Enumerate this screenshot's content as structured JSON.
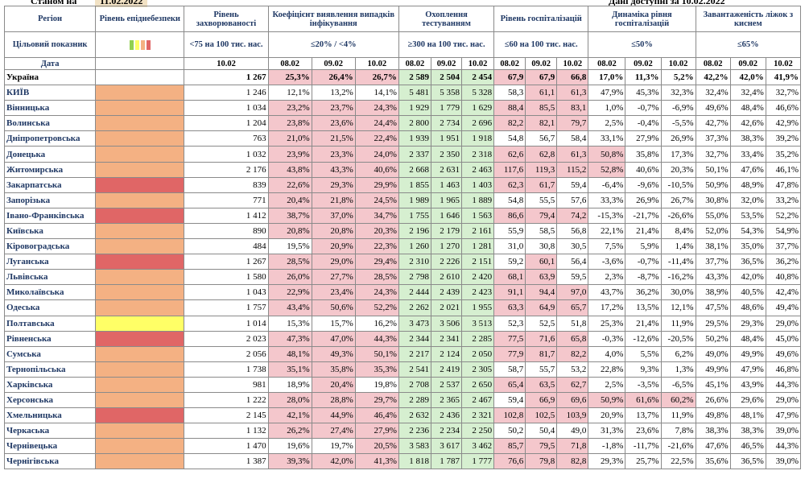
{
  "top": {
    "left": "Станом на",
    "date": "11.02.2022",
    "right": "Дані доступні за 10.02.2022"
  },
  "headers": {
    "region": "Регіон",
    "epid": "Рівень епіднебезпеки",
    "incidence": "Рівень захворюваності",
    "detection": "Коефіцієнт виявлення випадків інфікування",
    "testing": "Охоплення тестуванням",
    "hosp": "Рівень госпіталізацій",
    "dyn": "Динаміка рівня госпіталізацій",
    "beds": "Завантаженість ліжок з киснем",
    "target_label": "Цільовий показник",
    "target_incidence": "<75 на 100 тис. нас.",
    "target_detection": "≤20% / <4%",
    "target_testing": "≥300 на 100 тис. нас.",
    "target_hosp": "≤60 на 100 тис. нас.",
    "target_dyn": "≤50%",
    "target_beds": "≤65%",
    "date_label": "Дата",
    "d_inc": "10.02",
    "dates": [
      "08.02",
      "09.02",
      "10.02"
    ]
  },
  "colors": {
    "orange": "#f4b183",
    "red": "#e06666",
    "yellow": "#ffff66",
    "pink": "#f4c7cc",
    "green": "#d6efd0"
  },
  "rows": [
    {
      "name": "Україна",
      "lvl": "none",
      "inc": "1 267",
      "det": [
        "25,3%",
        "26,4%",
        "26,7%"
      ],
      "test": [
        "2 589",
        "2 504",
        "2 454"
      ],
      "hosp": [
        "67,9",
        "67,9",
        "66,8"
      ],
      "dyn": [
        "17,0%",
        "11,3%",
        "5,2%"
      ],
      "beds": [
        "42,2%",
        "42,0%",
        "41,9%"
      ]
    },
    {
      "name": "КИЇВ",
      "lvl": "orange",
      "inc": "1 246",
      "det": [
        "12,1%",
        "13,2%",
        "14,1%"
      ],
      "test": [
        "5 481",
        "5 358",
        "5 328"
      ],
      "hosp": [
        "58,3",
        "61,1",
        "61,3"
      ],
      "dyn": [
        "47,9%",
        "45,3%",
        "32,3%"
      ],
      "beds": [
        "32,4%",
        "32,4%",
        "32,7%"
      ]
    },
    {
      "name": "Вінницька",
      "lvl": "orange",
      "inc": "1 034",
      "det": [
        "23,2%",
        "23,7%",
        "24,3%"
      ],
      "test": [
        "1 929",
        "1 779",
        "1 629"
      ],
      "hosp": [
        "88,4",
        "85,5",
        "83,1"
      ],
      "dyn": [
        "1,0%",
        "-0,7%",
        "-6,9%"
      ],
      "beds": [
        "49,6%",
        "48,4%",
        "46,6%"
      ]
    },
    {
      "name": "Волинська",
      "lvl": "orange",
      "inc": "1 204",
      "det": [
        "23,8%",
        "23,6%",
        "24,4%"
      ],
      "test": [
        "2 800",
        "2 734",
        "2 696"
      ],
      "hosp": [
        "82,2",
        "82,1",
        "79,7"
      ],
      "dyn": [
        "2,5%",
        "-0,4%",
        "-5,5%"
      ],
      "beds": [
        "42,7%",
        "42,6%",
        "42,9%"
      ]
    },
    {
      "name": "Дніпропетровська",
      "lvl": "orange",
      "inc": "763",
      "det": [
        "21,0%",
        "21,5%",
        "22,4%"
      ],
      "test": [
        "1 939",
        "1 951",
        "1 918"
      ],
      "hosp": [
        "54,8",
        "56,7",
        "58,4"
      ],
      "dyn": [
        "33,1%",
        "27,9%",
        "26,9%"
      ],
      "beds": [
        "37,3%",
        "38,3%",
        "39,2%"
      ]
    },
    {
      "name": "Донецька",
      "lvl": "orange",
      "inc": "1 032",
      "det": [
        "23,9%",
        "23,3%",
        "24,0%"
      ],
      "test": [
        "2 337",
        "2 350",
        "2 318"
      ],
      "hosp": [
        "62,6",
        "62,8",
        "61,3"
      ],
      "dyn": [
        "50,8%",
        "35,8%",
        "17,3%"
      ],
      "beds": [
        "32,7%",
        "33,4%",
        "35,2%"
      ]
    },
    {
      "name": "Житомирська",
      "lvl": "orange",
      "inc": "2 176",
      "det": [
        "43,8%",
        "43,3%",
        "40,6%"
      ],
      "test": [
        "2 668",
        "2 631",
        "2 463"
      ],
      "hosp": [
        "117,6",
        "119,3",
        "115,2"
      ],
      "dyn": [
        "52,8%",
        "40,6%",
        "20,3%"
      ],
      "beds": [
        "50,1%",
        "47,6%",
        "46,1%"
      ]
    },
    {
      "name": "Закарпатська",
      "lvl": "red",
      "inc": "839",
      "det": [
        "22,6%",
        "29,3%",
        "29,9%"
      ],
      "test": [
        "1 855",
        "1 463",
        "1 403"
      ],
      "hosp": [
        "62,3",
        "61,7",
        "59,4"
      ],
      "dyn": [
        "-6,4%",
        "-9,6%",
        "-10,5%"
      ],
      "beds": [
        "50,9%",
        "48,9%",
        "47,8%"
      ]
    },
    {
      "name": "Запорізька",
      "lvl": "orange",
      "inc": "771",
      "det": [
        "20,4%",
        "21,8%",
        "24,5%"
      ],
      "test": [
        "1 989",
        "1 965",
        "1 889"
      ],
      "hosp": [
        "54,8",
        "55,5",
        "57,6"
      ],
      "dyn": [
        "33,3%",
        "26,9%",
        "26,7%"
      ],
      "beds": [
        "30,8%",
        "32,0%",
        "33,2%"
      ]
    },
    {
      "name": "Івано-Франківська",
      "lvl": "red",
      "inc": "1 412",
      "det": [
        "38,7%",
        "37,0%",
        "34,7%"
      ],
      "test": [
        "1 755",
        "1 646",
        "1 563"
      ],
      "hosp": [
        "86,6",
        "79,4",
        "74,2"
      ],
      "dyn": [
        "-15,3%",
        "-21,7%",
        "-26,6%"
      ],
      "beds": [
        "55,0%",
        "53,5%",
        "52,2%"
      ]
    },
    {
      "name": "Київська",
      "lvl": "orange",
      "inc": "890",
      "det": [
        "20,8%",
        "20,8%",
        "20,3%"
      ],
      "test": [
        "2 196",
        "2 179",
        "2 161"
      ],
      "hosp": [
        "55,9",
        "58,5",
        "56,8"
      ],
      "dyn": [
        "22,1%",
        "21,4%",
        "8,4%"
      ],
      "beds": [
        "52,0%",
        "54,3%",
        "54,9%"
      ]
    },
    {
      "name": "Кіровоградська",
      "lvl": "orange",
      "inc": "484",
      "det": [
        "19,5%",
        "20,9%",
        "22,3%"
      ],
      "test": [
        "1 260",
        "1 270",
        "1 281"
      ],
      "hosp": [
        "31,0",
        "30,8",
        "30,5"
      ],
      "dyn": [
        "7,5%",
        "5,9%",
        "1,4%"
      ],
      "beds": [
        "38,1%",
        "35,0%",
        "37,7%"
      ]
    },
    {
      "name": "Луганська",
      "lvl": "red",
      "inc": "1 267",
      "det": [
        "28,5%",
        "29,0%",
        "29,4%"
      ],
      "test": [
        "2 310",
        "2 226",
        "2 151"
      ],
      "hosp": [
        "59,2",
        "60,1",
        "56,4"
      ],
      "dyn": [
        "-3,6%",
        "-0,7%",
        "-11,4%"
      ],
      "beds": [
        "37,7%",
        "36,5%",
        "36,2%"
      ]
    },
    {
      "name": "Львівська",
      "lvl": "orange",
      "inc": "1 580",
      "det": [
        "26,0%",
        "27,7%",
        "28,5%"
      ],
      "test": [
        "2 798",
        "2 610",
        "2 420"
      ],
      "hosp": [
        "68,1",
        "63,9",
        "59,5"
      ],
      "dyn": [
        "2,3%",
        "-8,7%",
        "-16,2%"
      ],
      "beds": [
        "43,3%",
        "42,0%",
        "40,8%"
      ]
    },
    {
      "name": "Миколаївська",
      "lvl": "orange",
      "inc": "1 043",
      "det": [
        "22,9%",
        "23,4%",
        "24,3%"
      ],
      "test": [
        "2 444",
        "2 439",
        "2 423"
      ],
      "hosp": [
        "91,1",
        "94,4",
        "97,0"
      ],
      "dyn": [
        "43,7%",
        "36,2%",
        "30,0%"
      ],
      "beds": [
        "38,9%",
        "40,5%",
        "42,4%"
      ]
    },
    {
      "name": "Одеська",
      "lvl": "orange",
      "inc": "1 757",
      "det": [
        "43,4%",
        "50,6%",
        "52,2%"
      ],
      "test": [
        "2 262",
        "2 021",
        "1 955"
      ],
      "hosp": [
        "63,3",
        "64,9",
        "65,7"
      ],
      "dyn": [
        "17,2%",
        "13,5%",
        "12,1%"
      ],
      "beds": [
        "47,5%",
        "48,6%",
        "49,4%"
      ]
    },
    {
      "name": "Полтавська",
      "lvl": "yellow",
      "inc": "1 014",
      "det": [
        "15,3%",
        "15,7%",
        "16,2%"
      ],
      "test": [
        "3 473",
        "3 506",
        "3 513"
      ],
      "hosp": [
        "52,3",
        "52,5",
        "51,8"
      ],
      "dyn": [
        "25,3%",
        "21,4%",
        "11,9%"
      ],
      "beds": [
        "29,5%",
        "29,3%",
        "29,0%"
      ]
    },
    {
      "name": "Рівненська",
      "lvl": "red",
      "inc": "2 023",
      "det": [
        "47,3%",
        "47,0%",
        "44,3%"
      ],
      "test": [
        "2 344",
        "2 341",
        "2 285"
      ],
      "hosp": [
        "77,5",
        "71,6",
        "65,8"
      ],
      "dyn": [
        "-0,3%",
        "-12,6%",
        "-20,5%"
      ],
      "beds": [
        "50,2%",
        "48,4%",
        "45,0%"
      ]
    },
    {
      "name": "Сумська",
      "lvl": "orange",
      "inc": "2 056",
      "det": [
        "48,1%",
        "49,3%",
        "50,1%"
      ],
      "test": [
        "2 217",
        "2 124",
        "2 050"
      ],
      "hosp": [
        "77,9",
        "81,7",
        "82,2"
      ],
      "dyn": [
        "4,0%",
        "5,5%",
        "6,2%"
      ],
      "beds": [
        "49,0%",
        "49,9%",
        "49,6%"
      ]
    },
    {
      "name": "Тернопільська",
      "lvl": "orange",
      "inc": "1 738",
      "det": [
        "35,1%",
        "35,8%",
        "35,3%"
      ],
      "test": [
        "2 541",
        "2 419",
        "2 305"
      ],
      "hosp": [
        "58,7",
        "55,7",
        "53,2"
      ],
      "dyn": [
        "22,8%",
        "9,3%",
        "1,3%"
      ],
      "beds": [
        "49,9%",
        "47,9%",
        "46,8%"
      ]
    },
    {
      "name": "Харківська",
      "lvl": "orange",
      "inc": "981",
      "det": [
        "18,9%",
        "20,4%",
        "19,8%"
      ],
      "test": [
        "2 708",
        "2 537",
        "2 650"
      ],
      "hosp": [
        "65,4",
        "63,5",
        "62,7"
      ],
      "dyn": [
        "2,5%",
        "-3,5%",
        "-6,5%"
      ],
      "beds": [
        "45,1%",
        "43,9%",
        "44,3%"
      ]
    },
    {
      "name": "Херсонська",
      "lvl": "orange",
      "inc": "1 222",
      "det": [
        "28,0%",
        "28,8%",
        "29,7%"
      ],
      "test": [
        "2 289",
        "2 365",
        "2 467"
      ],
      "hosp": [
        "59,4",
        "66,9",
        "69,6"
      ],
      "dyn": [
        "50,9%",
        "61,6%",
        "60,2%"
      ],
      "beds": [
        "26,6%",
        "29,6%",
        "29,0%"
      ]
    },
    {
      "name": "Хмельницька",
      "lvl": "red",
      "inc": "2 145",
      "det": [
        "42,1%",
        "44,9%",
        "46,4%"
      ],
      "test": [
        "2 632",
        "2 436",
        "2 321"
      ],
      "hosp": [
        "102,8",
        "102,5",
        "103,9"
      ],
      "dyn": [
        "20,9%",
        "13,7%",
        "11,9%"
      ],
      "beds": [
        "49,8%",
        "48,1%",
        "47,9%"
      ]
    },
    {
      "name": "Черкаська",
      "lvl": "orange",
      "inc": "1 132",
      "det": [
        "26,2%",
        "27,4%",
        "27,9%"
      ],
      "test": [
        "2 236",
        "2 234",
        "2 250"
      ],
      "hosp": [
        "50,2",
        "50,4",
        "49,0"
      ],
      "dyn": [
        "31,3%",
        "23,6%",
        "7,8%"
      ],
      "beds": [
        "38,3%",
        "38,3%",
        "39,0%"
      ]
    },
    {
      "name": "Чернівецька",
      "lvl": "orange",
      "inc": "1 470",
      "det": [
        "19,6%",
        "19,7%",
        "20,5%"
      ],
      "test": [
        "3 583",
        "3 617",
        "3 462"
      ],
      "hosp": [
        "85,7",
        "79,5",
        "71,8"
      ],
      "dyn": [
        "-1,8%",
        "-11,7%",
        "-21,6%"
      ],
      "beds": [
        "47,6%",
        "46,5%",
        "44,3%"
      ]
    },
    {
      "name": "Чернігівська",
      "lvl": "orange",
      "inc": "1 387",
      "det": [
        "39,3%",
        "42,0%",
        "41,3%"
      ],
      "test": [
        "1 818",
        "1 787",
        "1 777"
      ],
      "hosp": [
        "76,6",
        "79,8",
        "82,8"
      ],
      "dyn": [
        "29,3%",
        "25,7%",
        "22,5%"
      ],
      "beds": [
        "35,6%",
        "36,5%",
        "39,0%"
      ]
    }
  ],
  "pink_cells": {
    "det": [
      [
        0,
        0
      ],
      [
        0,
        1
      ],
      [
        0,
        2
      ],
      [
        2,
        0
      ],
      [
        2,
        1
      ],
      [
        2,
        2
      ],
      [
        3,
        0
      ],
      [
        3,
        1
      ],
      [
        3,
        2
      ],
      [
        4,
        0
      ],
      [
        4,
        1
      ],
      [
        4,
        2
      ],
      [
        5,
        0
      ],
      [
        5,
        1
      ],
      [
        5,
        2
      ],
      [
        6,
        0
      ],
      [
        6,
        1
      ],
      [
        6,
        2
      ],
      [
        7,
        0
      ],
      [
        7,
        1
      ],
      [
        7,
        2
      ],
      [
        8,
        0
      ],
      [
        8,
        1
      ],
      [
        8,
        2
      ],
      [
        9,
        0
      ],
      [
        9,
        1
      ],
      [
        9,
        2
      ],
      [
        10,
        0
      ],
      [
        10,
        1
      ],
      [
        10,
        2
      ],
      [
        11,
        1
      ],
      [
        11,
        2
      ],
      [
        12,
        0
      ],
      [
        12,
        1
      ],
      [
        12,
        2
      ],
      [
        13,
        0
      ],
      [
        13,
        1
      ],
      [
        13,
        2
      ],
      [
        14,
        0
      ],
      [
        14,
        1
      ],
      [
        14,
        2
      ],
      [
        15,
        0
      ],
      [
        15,
        1
      ],
      [
        15,
        2
      ],
      [
        17,
        0
      ],
      [
        17,
        1
      ],
      [
        17,
        2
      ],
      [
        18,
        0
      ],
      [
        18,
        1
      ],
      [
        18,
        2
      ],
      [
        19,
        0
      ],
      [
        19,
        1
      ],
      [
        19,
        2
      ],
      [
        20,
        1
      ],
      [
        21,
        0
      ],
      [
        21,
        1
      ],
      [
        21,
        2
      ],
      [
        22,
        0
      ],
      [
        22,
        1
      ],
      [
        22,
        2
      ],
      [
        23,
        0
      ],
      [
        23,
        1
      ],
      [
        23,
        2
      ],
      [
        24,
        2
      ],
      [
        25,
        0
      ],
      [
        25,
        1
      ],
      [
        25,
        2
      ]
    ],
    "hosp": [
      [
        0,
        0
      ],
      [
        0,
        1
      ],
      [
        0,
        2
      ],
      [
        1,
        1
      ],
      [
        1,
        2
      ],
      [
        2,
        0
      ],
      [
        2,
        1
      ],
      [
        2,
        2
      ],
      [
        3,
        0
      ],
      [
        3,
        1
      ],
      [
        3,
        2
      ],
      [
        5,
        0
      ],
      [
        5,
        1
      ],
      [
        5,
        2
      ],
      [
        6,
        0
      ],
      [
        6,
        1
      ],
      [
        6,
        2
      ],
      [
        7,
        0
      ],
      [
        7,
        1
      ],
      [
        9,
        0
      ],
      [
        9,
        1
      ],
      [
        9,
        2
      ],
      [
        12,
        1
      ],
      [
        13,
        0
      ],
      [
        13,
        1
      ],
      [
        14,
        0
      ],
      [
        14,
        1
      ],
      [
        14,
        2
      ],
      [
        15,
        0
      ],
      [
        15,
        1
      ],
      [
        15,
        2
      ],
      [
        17,
        0
      ],
      [
        17,
        1
      ],
      [
        17,
        2
      ],
      [
        18,
        0
      ],
      [
        18,
        1
      ],
      [
        18,
        2
      ],
      [
        20,
        0
      ],
      [
        20,
        1
      ],
      [
        20,
        2
      ],
      [
        21,
        1
      ],
      [
        21,
        2
      ],
      [
        22,
        0
      ],
      [
        22,
        1
      ],
      [
        22,
        2
      ],
      [
        24,
        0
      ],
      [
        24,
        1
      ],
      [
        24,
        2
      ],
      [
        25,
        0
      ],
      [
        25,
        1
      ],
      [
        25,
        2
      ]
    ],
    "dyn": [
      [
        5,
        0
      ],
      [
        6,
        0
      ],
      [
        21,
        0
      ],
      [
        21,
        1
      ],
      [
        21,
        2
      ]
    ]
  }
}
